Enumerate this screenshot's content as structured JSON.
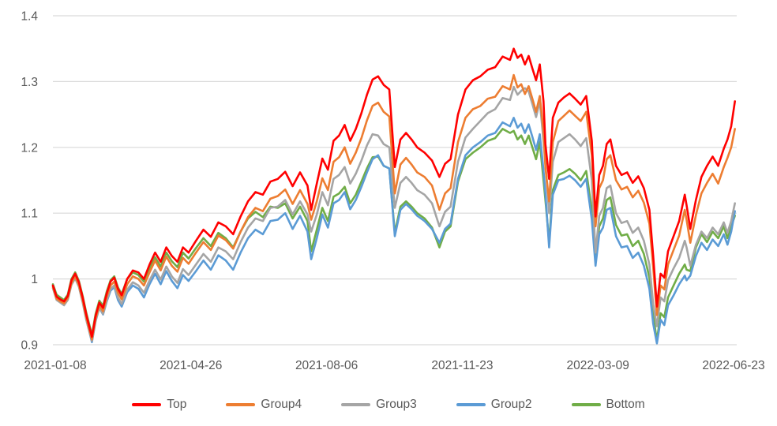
{
  "chart_data": {
    "type": "line",
    "title": "",
    "xlabel": "",
    "ylabel": "",
    "ylim": [
      0.9,
      1.4
    ],
    "grid": "horizontal",
    "legend_position": "bottom-center",
    "colors": {
      "gridline": "#d9d9d9",
      "axis_text": "#595959",
      "background": "#ffffff"
    },
    "yticks": [
      {
        "label": "1.4",
        "value": 1.4
      },
      {
        "label": "1.3",
        "value": 1.3
      },
      {
        "label": "1.2",
        "value": 1.2
      },
      {
        "label": "1.1",
        "value": 1.1
      },
      {
        "label": "1",
        "value": 1.0
      },
      {
        "label": "0.9",
        "value": 0.9
      }
    ],
    "xticks": [
      {
        "label": "2021-01-08",
        "d": 0
      },
      {
        "label": "2021-04-26",
        "d": 73
      },
      {
        "label": "2021-08-06",
        "d": 146
      },
      {
        "label": "2021-11-23",
        "d": 219
      },
      {
        "label": "2022-03-09",
        "d": 292
      },
      {
        "label": "2022-06-23",
        "d": 365
      }
    ],
    "x_unit": "trading-day index from 2021-01-08",
    "x": [
      0,
      2,
      4,
      6,
      8,
      10,
      12,
      14,
      16,
      18,
      21,
      23,
      25,
      27,
      29,
      31,
      33,
      35,
      37,
      40,
      43,
      46,
      49,
      52,
      55,
      58,
      61,
      64,
      67,
      70,
      73,
      77,
      81,
      85,
      89,
      93,
      97,
      101,
      105,
      109,
      113,
      117,
      121,
      125,
      129,
      133,
      137,
      139,
      142,
      145,
      148,
      151,
      154,
      157,
      160,
      163,
      166,
      169,
      172,
      175,
      178,
      181,
      184,
      187,
      190,
      193,
      196,
      200,
      204,
      208,
      211,
      214,
      218,
      222,
      226,
      230,
      234,
      238,
      242,
      246,
      248,
      250,
      252,
      254,
      256,
      258,
      260,
      262,
      264,
      265,
      267,
      269,
      272,
      275,
      278,
      281,
      284,
      287,
      290,
      292,
      294,
      296,
      298,
      300,
      303,
      306,
      309,
      312,
      315,
      318,
      321,
      323,
      325,
      327,
      329,
      331,
      334,
      337,
      340,
      341,
      343,
      346,
      349,
      352,
      355,
      358,
      361,
      363,
      365,
      367
    ],
    "series": [
      {
        "name": "Top",
        "color": "#ff0000",
        "values": [
          0.99,
          0.973,
          0.969,
          0.966,
          0.974,
          0.998,
          1.008,
          0.995,
          0.972,
          0.945,
          0.912,
          0.944,
          0.964,
          0.956,
          0.978,
          0.996,
          1.002,
          0.985,
          0.975,
          1.0,
          1.013,
          1.01,
          1.0,
          1.022,
          1.04,
          1.026,
          1.048,
          1.035,
          1.026,
          1.048,
          1.04,
          1.058,
          1.075,
          1.064,
          1.086,
          1.08,
          1.068,
          1.095,
          1.118,
          1.132,
          1.128,
          1.148,
          1.152,
          1.163,
          1.141,
          1.162,
          1.142,
          1.105,
          1.145,
          1.183,
          1.166,
          1.21,
          1.218,
          1.234,
          1.21,
          1.228,
          1.252,
          1.28,
          1.303,
          1.308,
          1.295,
          1.288,
          1.17,
          1.212,
          1.222,
          1.212,
          1.2,
          1.192,
          1.18,
          1.155,
          1.175,
          1.182,
          1.25,
          1.288,
          1.302,
          1.308,
          1.318,
          1.322,
          1.338,
          1.333,
          1.35,
          1.336,
          1.341,
          1.326,
          1.339,
          1.32,
          1.302,
          1.326,
          1.27,
          1.205,
          1.152,
          1.245,
          1.268,
          1.276,
          1.282,
          1.274,
          1.265,
          1.278,
          1.21,
          1.095,
          1.158,
          1.172,
          1.205,
          1.212,
          1.172,
          1.158,
          1.162,
          1.146,
          1.156,
          1.138,
          1.105,
          1.035,
          0.958,
          1.008,
          1.002,
          1.042,
          1.065,
          1.088,
          1.128,
          1.112,
          1.076,
          1.12,
          1.155,
          1.172,
          1.186,
          1.172,
          1.198,
          1.212,
          1.232,
          1.27
        ]
      },
      {
        "name": "Group4",
        "color": "#ed7d31",
        "values": [
          0.988,
          0.97,
          0.966,
          0.963,
          0.971,
          0.994,
          1.004,
          0.991,
          0.968,
          0.941,
          0.908,
          0.94,
          0.96,
          0.951,
          0.973,
          0.99,
          0.996,
          0.979,
          0.969,
          0.992,
          1.004,
          1.0,
          0.99,
          1.01,
          1.028,
          1.013,
          1.034,
          1.02,
          1.011,
          1.032,
          1.023,
          1.04,
          1.056,
          1.044,
          1.066,
          1.059,
          1.046,
          1.072,
          1.094,
          1.108,
          1.103,
          1.122,
          1.126,
          1.136,
          1.114,
          1.135,
          1.114,
          1.09,
          1.118,
          1.153,
          1.135,
          1.178,
          1.185,
          1.2,
          1.175,
          1.192,
          1.214,
          1.241,
          1.263,
          1.268,
          1.254,
          1.247,
          1.13,
          1.174,
          1.184,
          1.174,
          1.162,
          1.155,
          1.142,
          1.105,
          1.13,
          1.138,
          1.208,
          1.245,
          1.258,
          1.263,
          1.274,
          1.277,
          1.293,
          1.288,
          1.31,
          1.291,
          1.296,
          1.281,
          1.293,
          1.274,
          1.254,
          1.278,
          1.225,
          1.17,
          1.118,
          1.208,
          1.24,
          1.248,
          1.256,
          1.248,
          1.24,
          1.254,
          1.188,
          1.08,
          1.138,
          1.15,
          1.182,
          1.188,
          1.15,
          1.136,
          1.14,
          1.124,
          1.134,
          1.116,
          1.084,
          1.018,
          0.945,
          0.99,
          0.984,
          1.022,
          1.044,
          1.066,
          1.105,
          1.09,
          1.055,
          1.097,
          1.13,
          1.146,
          1.16,
          1.145,
          1.17,
          1.184,
          1.2,
          1.228
        ]
      },
      {
        "name": "Group3",
        "color": "#a5a5a5",
        "values": [
          0.986,
          0.968,
          0.964,
          0.96,
          0.968,
          0.991,
          1.001,
          0.988,
          0.964,
          0.937,
          0.906,
          0.937,
          0.956,
          0.947,
          0.968,
          0.985,
          0.99,
          0.972,
          0.962,
          0.984,
          0.995,
          0.99,
          0.979,
          0.998,
          1.014,
          0.999,
          1.019,
          1.004,
          0.994,
          1.015,
          1.006,
          1.022,
          1.038,
          1.026,
          1.048,
          1.042,
          1.03,
          1.056,
          1.078,
          1.092,
          1.088,
          1.108,
          1.11,
          1.12,
          1.098,
          1.118,
          1.098,
          1.072,
          1.098,
          1.132,
          1.112,
          1.152,
          1.158,
          1.17,
          1.145,
          1.16,
          1.18,
          1.203,
          1.22,
          1.218,
          1.205,
          1.2,
          1.108,
          1.146,
          1.155,
          1.146,
          1.135,
          1.128,
          1.115,
          1.08,
          1.102,
          1.11,
          1.178,
          1.215,
          1.228,
          1.24,
          1.252,
          1.258,
          1.275,
          1.272,
          1.292,
          1.28,
          1.286,
          1.29,
          1.285,
          1.266,
          1.246,
          1.27,
          1.21,
          1.175,
          1.1,
          1.178,
          1.208,
          1.214,
          1.22,
          1.212,
          1.202,
          1.214,
          1.15,
          1.04,
          1.096,
          1.108,
          1.138,
          1.142,
          1.1,
          1.085,
          1.088,
          1.07,
          1.078,
          1.058,
          1.022,
          0.962,
          0.928,
          0.972,
          0.966,
          0.998,
          1.016,
          1.032,
          1.058,
          1.048,
          1.02,
          1.052,
          1.072,
          1.062,
          1.078,
          1.068,
          1.086,
          1.07,
          1.088,
          1.115
        ]
      },
      {
        "name": "Group2",
        "color": "#5b9bd5",
        "values": [
          0.99,
          0.972,
          0.967,
          0.963,
          0.97,
          0.995,
          1.005,
          0.99,
          0.966,
          0.938,
          0.904,
          0.936,
          0.956,
          0.946,
          0.966,
          0.982,
          0.988,
          0.968,
          0.958,
          0.98,
          0.99,
          0.985,
          0.972,
          0.992,
          1.008,
          0.992,
          1.012,
          0.997,
          0.986,
          1.006,
          0.997,
          1.012,
          1.028,
          1.014,
          1.036,
          1.028,
          1.014,
          1.04,
          1.062,
          1.075,
          1.068,
          1.088,
          1.09,
          1.1,
          1.076,
          1.096,
          1.072,
          1.03,
          1.062,
          1.098,
          1.078,
          1.115,
          1.12,
          1.132,
          1.106,
          1.12,
          1.14,
          1.162,
          1.182,
          1.188,
          1.172,
          1.168,
          1.065,
          1.105,
          1.114,
          1.106,
          1.096,
          1.088,
          1.076,
          1.055,
          1.076,
          1.084,
          1.152,
          1.188,
          1.2,
          1.208,
          1.218,
          1.222,
          1.238,
          1.232,
          1.245,
          1.23,
          1.236,
          1.222,
          1.235,
          1.216,
          1.196,
          1.22,
          1.165,
          1.13,
          1.048,
          1.128,
          1.15,
          1.152,
          1.157,
          1.15,
          1.14,
          1.152,
          1.09,
          1.02,
          1.068,
          1.078,
          1.105,
          1.108,
          1.065,
          1.048,
          1.05,
          1.032,
          1.04,
          1.02,
          0.985,
          0.932,
          0.902,
          0.938,
          0.93,
          0.96,
          0.975,
          0.992,
          1.005,
          0.998,
          1.005,
          1.035,
          1.055,
          1.044,
          1.06,
          1.05,
          1.068,
          1.052,
          1.072,
          1.103
        ]
      },
      {
        "name": "Bottom",
        "color": "#70ad47",
        "values": [
          0.992,
          0.976,
          0.972,
          0.968,
          0.976,
          1.0,
          1.01,
          0.997,
          0.974,
          0.948,
          0.915,
          0.947,
          0.967,
          0.959,
          0.981,
          0.998,
          1.004,
          0.987,
          0.977,
          1.0,
          1.01,
          1.006,
          0.996,
          1.016,
          1.033,
          1.019,
          1.04,
          1.027,
          1.018,
          1.04,
          1.031,
          1.047,
          1.062,
          1.05,
          1.07,
          1.062,
          1.048,
          1.072,
          1.092,
          1.102,
          1.094,
          1.11,
          1.108,
          1.115,
          1.092,
          1.11,
          1.088,
          1.042,
          1.075,
          1.108,
          1.088,
          1.125,
          1.13,
          1.14,
          1.115,
          1.128,
          1.148,
          1.168,
          1.185,
          1.186,
          1.172,
          1.168,
          1.07,
          1.11,
          1.118,
          1.11,
          1.1,
          1.092,
          1.078,
          1.048,
          1.072,
          1.08,
          1.148,
          1.182,
          1.192,
          1.2,
          1.21,
          1.214,
          1.228,
          1.222,
          1.225,
          1.212,
          1.218,
          1.205,
          1.218,
          1.2,
          1.182,
          1.208,
          1.15,
          1.12,
          1.056,
          1.135,
          1.158,
          1.162,
          1.167,
          1.16,
          1.15,
          1.164,
          1.105,
          1.028,
          1.08,
          1.092,
          1.12,
          1.124,
          1.082,
          1.066,
          1.068,
          1.05,
          1.058,
          1.038,
          1.002,
          0.945,
          0.906,
          0.948,
          0.942,
          0.972,
          0.99,
          1.008,
          1.022,
          1.014,
          1.012,
          1.048,
          1.068,
          1.056,
          1.072,
          1.062,
          1.08,
          1.062,
          1.08,
          1.096
        ]
      }
    ]
  }
}
